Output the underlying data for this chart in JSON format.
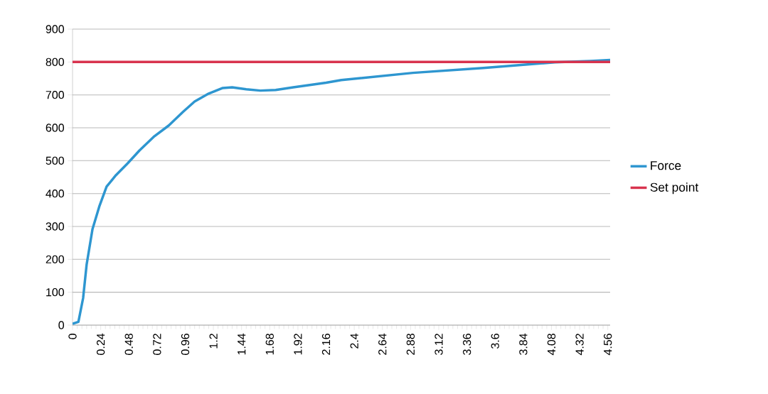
{
  "chart_data": {
    "type": "line",
    "xlim": [
      0,
      4.58
    ],
    "ylim": [
      0,
      900
    ],
    "xticks": [
      0,
      0.24,
      0.48,
      0.72,
      0.96,
      1.2,
      1.44,
      1.68,
      1.92,
      2.16,
      2.4,
      2.64,
      2.88,
      3.12,
      3.36,
      3.6,
      3.84,
      4.08,
      4.32,
      4.56
    ],
    "yticks": [
      0,
      100,
      200,
      300,
      400,
      500,
      600,
      700,
      800,
      900
    ],
    "grid": "y",
    "legend": "right",
    "marker": "none",
    "line_style": "solid",
    "series": [
      {
        "name": "Force",
        "color": "#2e96d0",
        "x": [
          0,
          0.05,
          0.09,
          0.12,
          0.17,
          0.23,
          0.29,
          0.37,
          0.47,
          0.57,
          0.69,
          0.82,
          0.94,
          1.04,
          1.16,
          1.28,
          1.36,
          1.48,
          1.6,
          1.73,
          1.88,
          2.16,
          2.29,
          2.9,
          3.5,
          4.11,
          4.41,
          4.58
        ],
        "values": [
          4,
          10,
          82,
          184,
          292,
          363,
          421,
          456,
          492,
          531,
          572,
          607,
          648,
          680,
          704,
          721,
          723,
          717,
          713,
          715,
          723,
          737,
          745,
          767,
          782,
          799,
          803,
          806
        ]
      },
      {
        "name": "Set point",
        "color": "#d8334e",
        "x": [
          0,
          4.58
        ],
        "values": [
          800,
          800
        ]
      }
    ]
  }
}
